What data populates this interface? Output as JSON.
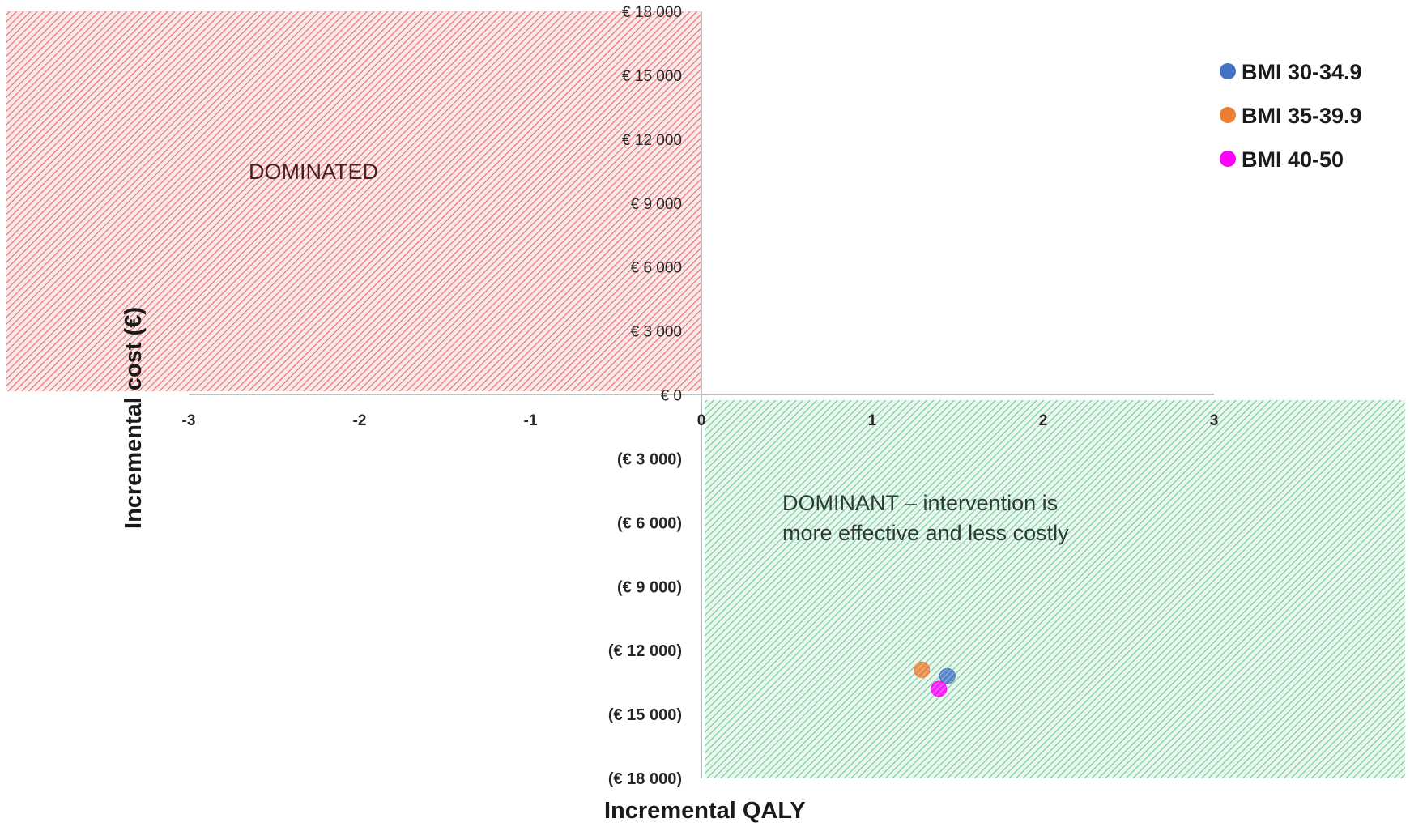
{
  "chart_data": {
    "type": "scatter",
    "xlabel": "Incremental QALY",
    "ylabel": "Incremental cost (€)",
    "xlim": [
      -3,
      3
    ],
    "ylim": [
      -18000,
      18000
    ],
    "x_ticks": [
      -3,
      -2,
      -1,
      0,
      1,
      2,
      3
    ],
    "x_tick_labels": [
      "-3",
      "-2",
      "-1",
      "0",
      "1",
      "2",
      "3"
    ],
    "y_ticks": [
      18000,
      15000,
      12000,
      9000,
      6000,
      3000,
      0,
      -3000,
      -6000,
      -9000,
      -12000,
      -15000,
      -18000
    ],
    "y_tick_labels": [
      "€ 18 000",
      "€ 15 000",
      "€ 12 000",
      "€ 9 000",
      "€ 6 000",
      "€ 3 000",
      "€ 0",
      "(€ 3 000)",
      "(€ 6 000)",
      "(€ 9 000)",
      "(€ 12 000)",
      "(€ 15 000)",
      "(€ 18 000)"
    ],
    "legend_position": "top-right",
    "grid": false,
    "regions": [
      {
        "label": "DOMINATED",
        "quadrant": "upper-left",
        "color": "#d9534f"
      },
      {
        "label_lines": [
          "DOMINANT – intervention is",
          "more effective and less costly"
        ],
        "quadrant": "lower-right",
        "color": "#4fbf85"
      }
    ],
    "series": [
      {
        "name": "BMI 30-34.9",
        "color": "#4472c4",
        "points": [
          {
            "x": 1.44,
            "y": -13200
          }
        ]
      },
      {
        "name": "BMI 35-39.9",
        "color": "#ed7d31",
        "points": [
          {
            "x": 1.29,
            "y": -12900
          }
        ]
      },
      {
        "name": "BMI 40-50",
        "color": "#ff00ff",
        "points": [
          {
            "x": 1.39,
            "y": -13800
          }
        ]
      }
    ]
  }
}
